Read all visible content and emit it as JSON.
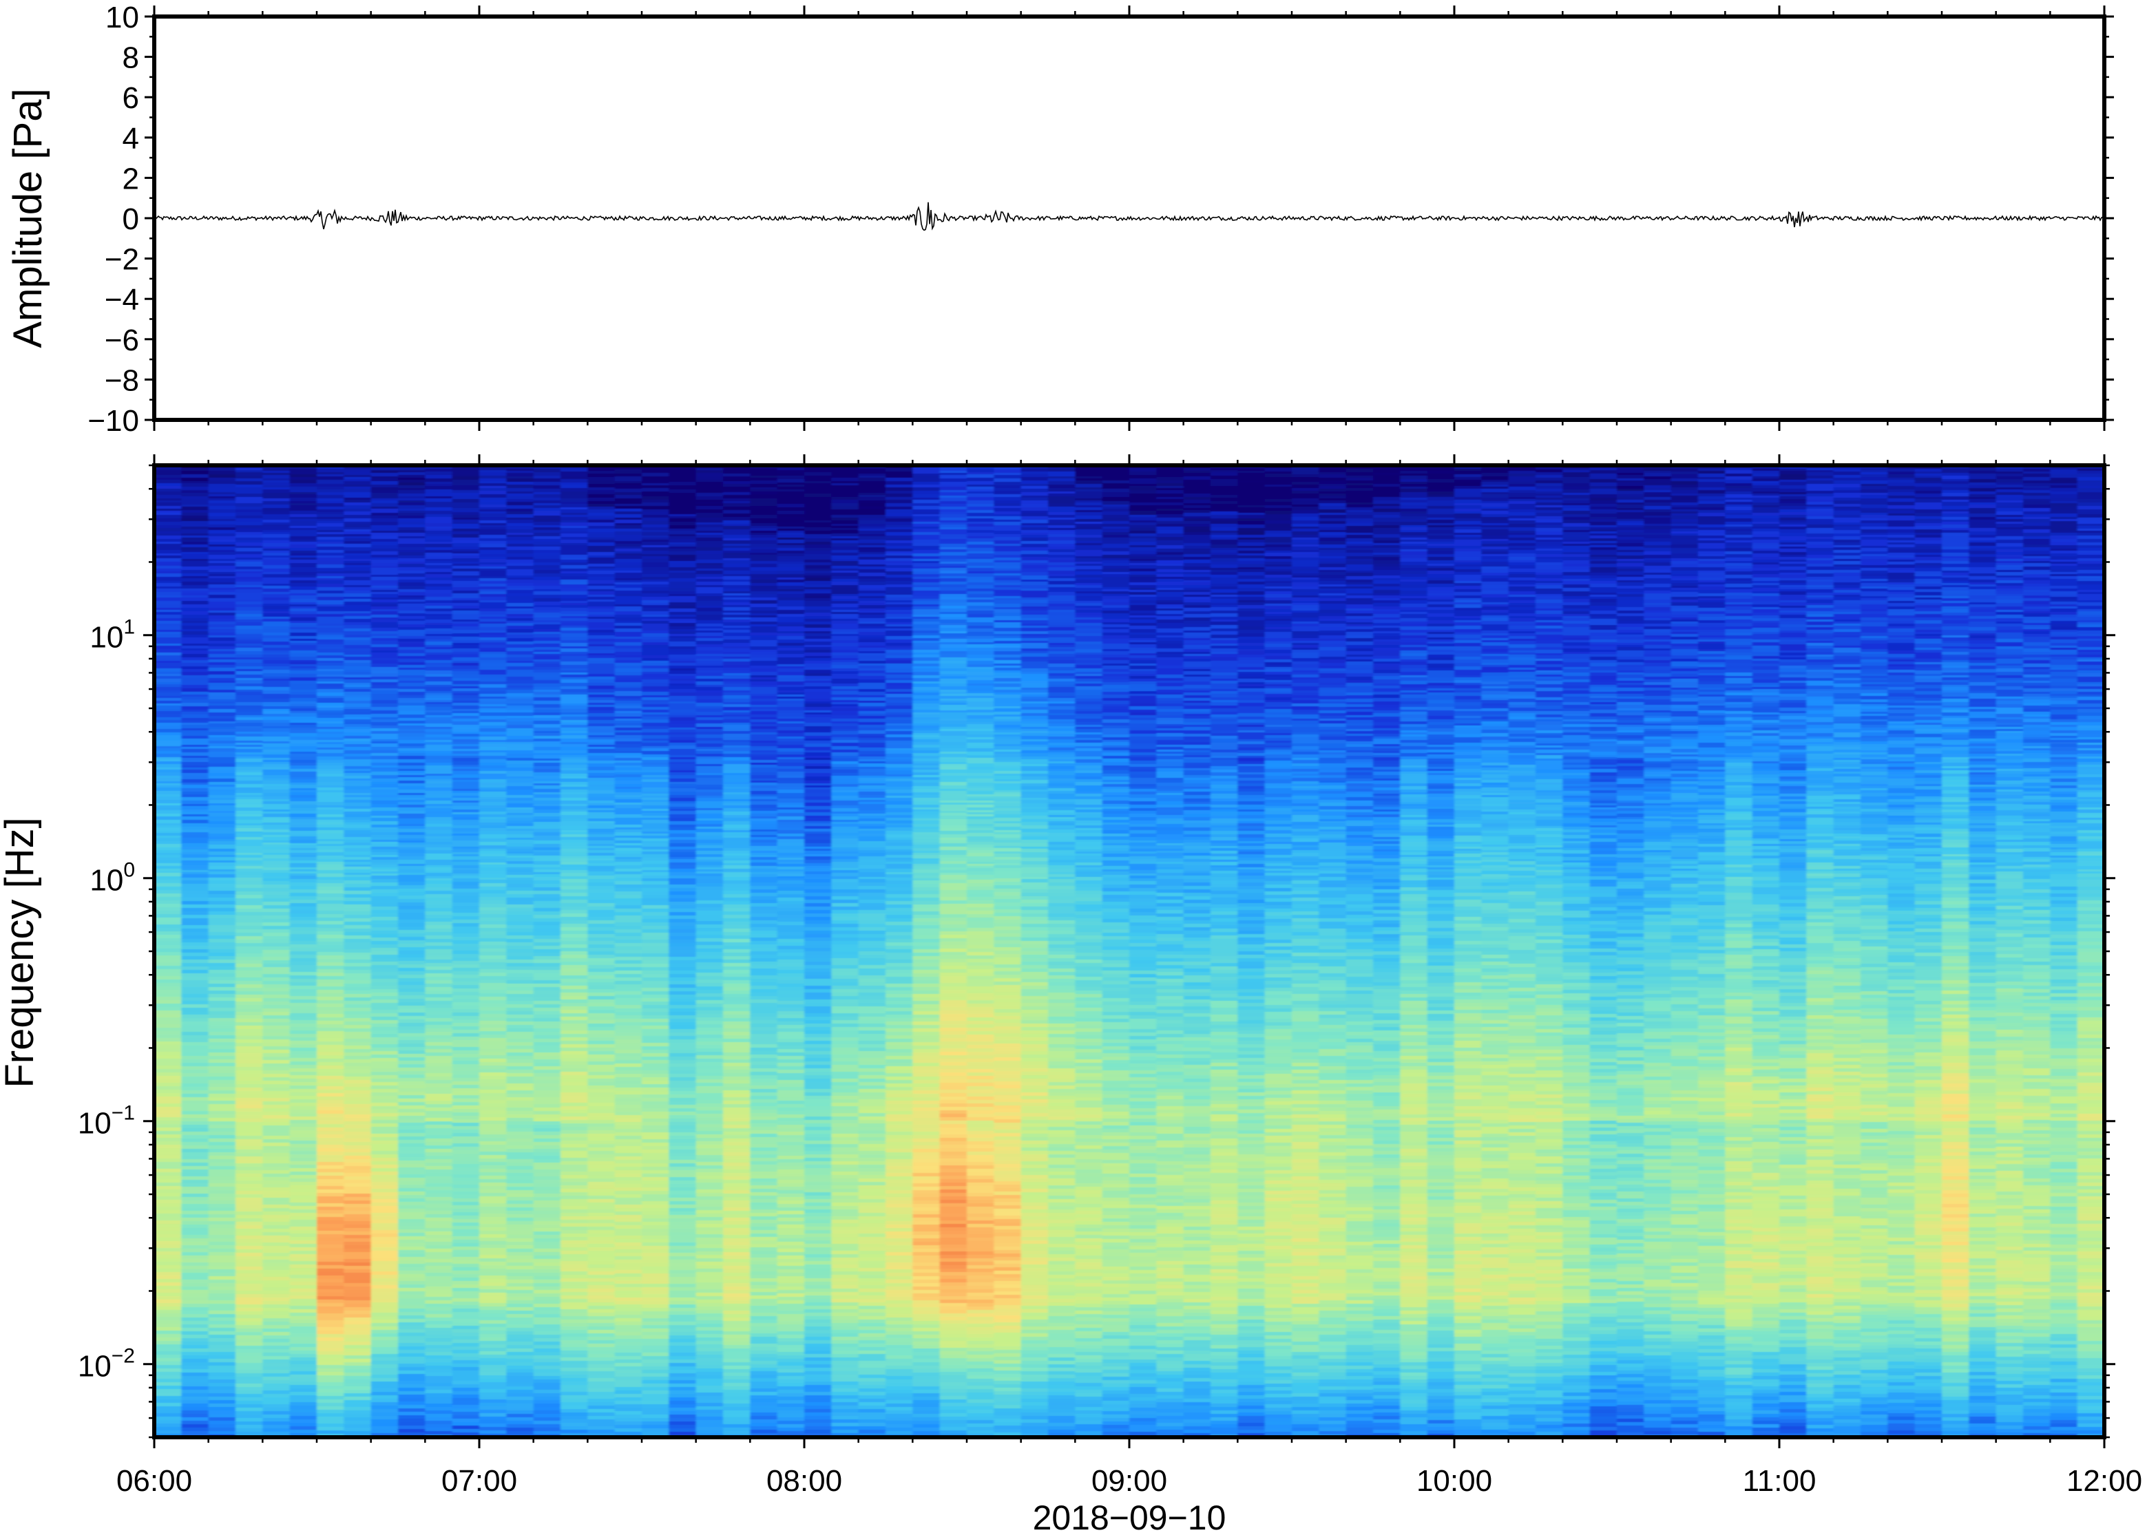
{
  "chart_data": [
    {
      "type": "line",
      "panel": "waveform",
      "ylabel": "Amplitude [Pa]",
      "ylim": [
        -10,
        10
      ],
      "yticks": [
        -10,
        -8,
        -6,
        -4,
        -2,
        0,
        2,
        4,
        6,
        8,
        10
      ],
      "ytick_labels": [
        "−10",
        "−8",
        "−6",
        "−4",
        "−2",
        "0",
        "2",
        "4",
        "6",
        "8",
        "10"
      ],
      "xlim": [
        "2018-09-10 06:00",
        "2018-09-10 12:00"
      ],
      "series": [
        {
          "baseline": 0,
          "noise_amplitude": 0.1,
          "bursts": [
            {
              "time": "06:32",
              "amplitude": 0.5
            },
            {
              "time": "06:44",
              "amplitude": 0.35
            },
            {
              "time": "08:23",
              "amplitude": 0.9
            },
            {
              "time": "08:36",
              "amplitude": 0.3
            },
            {
              "time": "11:03",
              "amplitude": 0.35
            }
          ]
        }
      ]
    },
    {
      "type": "heatmap",
      "panel": "spectrogram",
      "ylabel": "Frequency [Hz]",
      "xlabel": "2018−09−10",
      "yscale": "log",
      "ylim_hz": [
        0.005,
        50
      ],
      "yticks_hz": [
        0.01,
        0.1,
        1,
        10
      ],
      "ytick_labels": [
        {
          "base": "10",
          "exp": "−2"
        },
        {
          "base": "10",
          "exp": "−1"
        },
        {
          "base": "10",
          "exp": "0"
        },
        {
          "base": "10",
          "exp": "1"
        }
      ],
      "xticks": [
        "06:00",
        "07:00",
        "08:00",
        "09:00",
        "10:00",
        "11:00",
        "12:00"
      ],
      "colormap": [
        "#0d0473",
        "#1230d8",
        "#1e90ff",
        "#40c8f0",
        "#7fe6c8",
        "#c8f08a",
        "#fbe07a",
        "#fca358",
        "#f06a3a"
      ],
      "features": [
        {
          "time": "06:35",
          "freq_hz": "0.01–0.1",
          "level": "high"
        },
        {
          "time": "08:25",
          "freq_hz": "0.02–0.1",
          "level": "high"
        },
        {
          "time": "08:20–08:45",
          "freq_hz": "1–10",
          "level": "elevated"
        }
      ]
    }
  ]
}
